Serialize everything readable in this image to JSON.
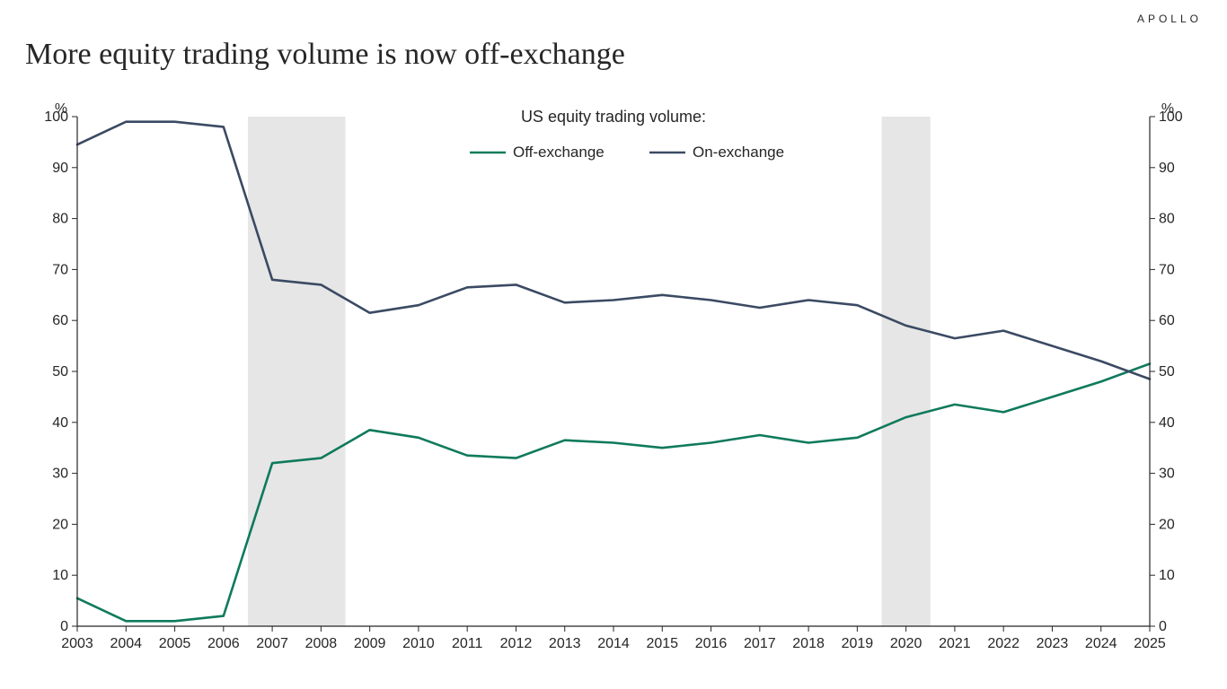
{
  "brand": "APOLLO",
  "title": "More equity trading volume is now off-exchange",
  "chart": {
    "type": "line",
    "subtitle": "US equity trading volume:",
    "background_color": "#ffffff",
    "plot_border_color": "#262626",
    "plot_border_width": 1.2,
    "y_axis": {
      "unit_label": "%",
      "min": 0,
      "max": 100,
      "tick_step": 10,
      "label_fontsize": 16
    },
    "x_axis": {
      "years": [
        2003,
        2004,
        2005,
        2006,
        2007,
        2008,
        2009,
        2010,
        2011,
        2012,
        2013,
        2014,
        2015,
        2016,
        2017,
        2018,
        2019,
        2020,
        2021,
        2022,
        2023,
        2024,
        2025
      ],
      "label_fontsize": 16
    },
    "recession_bands": {
      "fill": "#e6e6e6",
      "ranges": [
        {
          "start": 2006.5,
          "end": 2008.5
        },
        {
          "start": 2019.5,
          "end": 2020.5
        }
      ]
    },
    "series": [
      {
        "name": "Off-exchange",
        "color": "#0f7a5c",
        "line_width": 2.6,
        "values": [
          5.5,
          1.0,
          1.0,
          2.0,
          32.0,
          33.0,
          38.5,
          37.0,
          33.5,
          33.0,
          36.5,
          36.0,
          35.0,
          36.0,
          37.5,
          36.0,
          37.0,
          41.0,
          43.5,
          42.0,
          45.0,
          48.0,
          51.5
        ]
      },
      {
        "name": "On-exchange",
        "color": "#3b4a63",
        "line_width": 2.6,
        "values": [
          94.5,
          99.0,
          99.0,
          98.0,
          68.0,
          67.0,
          61.5,
          63.0,
          66.5,
          67.0,
          63.5,
          64.0,
          65.0,
          64.0,
          62.5,
          64.0,
          63.0,
          59.0,
          56.5,
          58.0,
          55.0,
          52.0,
          48.5
        ]
      }
    ],
    "legend": {
      "fontsize": 17,
      "spacing": 200
    }
  }
}
